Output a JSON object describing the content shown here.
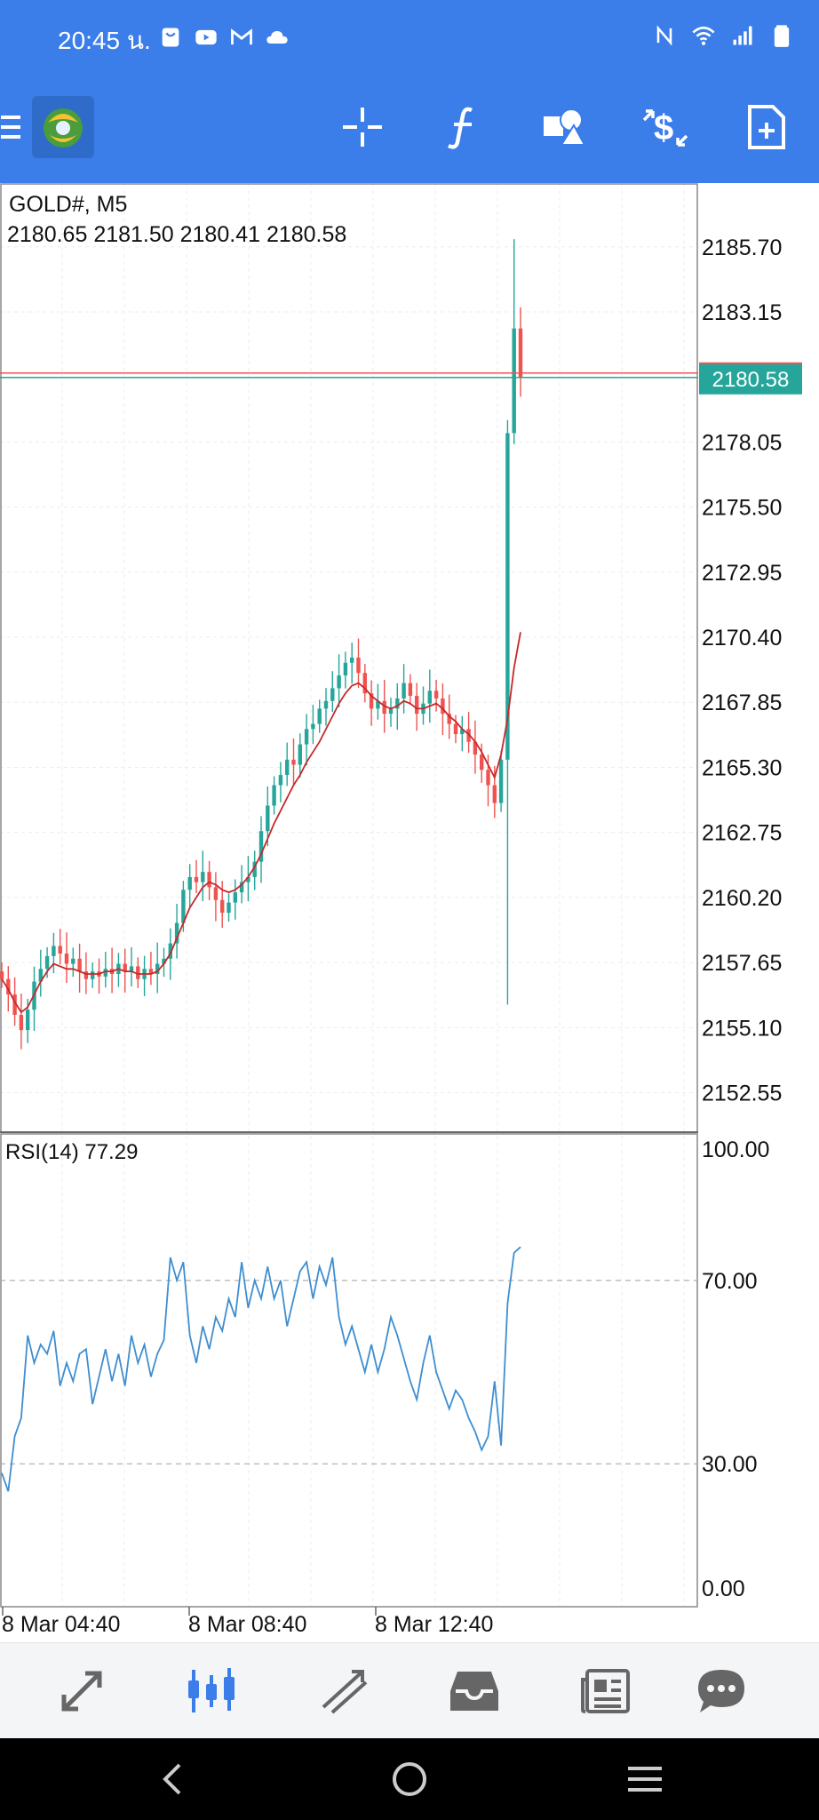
{
  "status_bar": {
    "time": "20:45 น.",
    "left_icons": [
      "shopping-bag-icon",
      "youtube-icon",
      "gmail-icon",
      "cloud-icon"
    ],
    "right_icons": [
      "nfc-icon",
      "wifi-icon",
      "signal-icon",
      "battery-icon"
    ]
  },
  "toolbar": {
    "items": [
      "menu-icon",
      "metatrader-logo",
      "crosshair-icon",
      "indicators-icon",
      "objects-icon",
      "trade-icon",
      "new-order-icon"
    ],
    "accent": "#3b7de9"
  },
  "chart": {
    "symbol_label": "GOLD#, M5",
    "ohlc_label": "2180.65 2181.50 2180.41 2180.58",
    "price_ticks": [
      "2185.70",
      "2183.15",
      "2178.05",
      "2175.50",
      "2172.95",
      "2170.40",
      "2167.85",
      "2165.30",
      "2162.75",
      "2160.20",
      "2157.65",
      "2155.10",
      "2152.55"
    ],
    "current_price": "2180.58",
    "rsi_label": "RSI(14) 77.29",
    "rsi_ticks": [
      "100.00",
      "70.00",
      "30.00",
      "0.00"
    ],
    "time_labels": [
      "8 Mar 04:40",
      "8 Mar 08:40",
      "8 Mar 12:40"
    ],
    "colors": {
      "bull": "#26a69a",
      "bear": "#ef5350",
      "ma": "#c62828",
      "rsi": "#3e8ed0",
      "bid_line": "#26a69a",
      "ask_line": "#ef5350"
    }
  },
  "chart_data": {
    "type": "candlestick",
    "symbol": "GOLD#",
    "timeframe": "M5",
    "ylim": [
      2151.0,
      2188.2
    ],
    "current_price": 2180.58,
    "close_approx": [
      2157.0,
      2156.4,
      2155.6,
      2155.0,
      2155.8,
      2156.9,
      2157.4,
      2157.9,
      2158.3,
      2158.0,
      2157.6,
      2157.8,
      2157.3,
      2157.0,
      2157.3,
      2157.1,
      2157.4,
      2157.2,
      2157.6,
      2157.3,
      2157.5,
      2157.0,
      2157.4,
      2157.2,
      2157.6,
      2157.8,
      2158.4,
      2159.2,
      2160.5,
      2161.0,
      2160.8,
      2161.2,
      2160.6,
      2160.1,
      2159.6,
      2160.0,
      2160.4,
      2160.8,
      2161.0,
      2161.6,
      2162.8,
      2163.8,
      2164.6,
      2165.0,
      2165.6,
      2165.4,
      2166.2,
      2166.8,
      2167.0,
      2167.6,
      2167.9,
      2168.4,
      2168.9,
      2169.4,
      2169.6,
      2169.0,
      2168.2,
      2167.6,
      2167.9,
      2167.4,
      2167.6,
      2168.0,
      2168.6,
      2168.1,
      2167.4,
      2167.8,
      2168.3,
      2168.0,
      2167.4,
      2167.0,
      2166.6,
      2166.8,
      2166.3,
      2165.8,
      2165.2,
      2164.6,
      2163.9,
      2165.6,
      2178.4,
      2182.5,
      2180.58
    ],
    "ma_approx": [
      2157.0,
      2156.6,
      2156.1,
      2155.7,
      2155.9,
      2156.4,
      2156.9,
      2157.3,
      2157.6,
      2157.5,
      2157.4,
      2157.4,
      2157.3,
      2157.2,
      2157.2,
      2157.2,
      2157.3,
      2157.3,
      2157.4,
      2157.3,
      2157.3,
      2157.2,
      2157.2,
      2157.2,
      2157.3,
      2157.6,
      2158.0,
      2158.6,
      2159.2,
      2159.8,
      2160.2,
      2160.6,
      2160.8,
      2160.7,
      2160.5,
      2160.4,
      2160.5,
      2160.7,
      2161.0,
      2161.4,
      2161.9,
      2162.5,
      2163.1,
      2163.6,
      2164.1,
      2164.6,
      2165.0,
      2165.5,
      2165.9,
      2166.3,
      2166.8,
      2167.3,
      2167.8,
      2168.2,
      2168.5,
      2168.6,
      2168.4,
      2168.1,
      2167.9,
      2167.7,
      2167.6,
      2167.7,
      2167.9,
      2167.8,
      2167.6,
      2167.6,
      2167.7,
      2167.8,
      2167.6,
      2167.3,
      2167.1,
      2166.8,
      2166.6,
      2166.3,
      2165.9,
      2165.4,
      2164.9,
      2165.8,
      2167.2,
      2169.2,
      2170.6
    ],
    "rsi_approx": [
      28,
      24,
      36,
      40,
      58,
      52,
      56,
      54,
      59,
      47,
      52,
      48,
      54,
      55,
      43,
      49,
      55,
      48,
      54,
      47,
      58,
      52,
      56,
      49,
      54,
      57,
      75,
      70,
      74,
      58,
      52,
      60,
      55,
      62,
      59,
      66,
      62,
      74,
      64,
      70,
      66,
      73,
      66,
      70,
      60,
      66,
      72,
      74,
      66,
      73,
      69,
      75,
      62,
      56,
      60,
      55,
      50,
      56,
      50,
      55,
      62,
      58,
      53,
      48,
      44,
      52,
      58,
      50,
      46,
      42,
      46,
      44,
      40,
      37,
      33,
      36,
      48,
      34,
      65,
      76,
      77.29
    ],
    "rsi_levels": [
      70,
      30
    ],
    "rsi_range": [
      0,
      100
    ],
    "x_tick_labels": [
      "8 Mar 04:40",
      "8 Mar 08:40",
      "8 Mar 12:40"
    ]
  },
  "bottom_nav": {
    "items": [
      "quotes-icon",
      "chart-icon",
      "trade-icon",
      "history-icon",
      "news-icon",
      "messages-icon"
    ],
    "active": 1,
    "active_color": "#3b7de9",
    "inactive_color": "#666666"
  },
  "system_nav": {
    "items": [
      "back-icon",
      "home-icon",
      "recents-icon"
    ]
  }
}
